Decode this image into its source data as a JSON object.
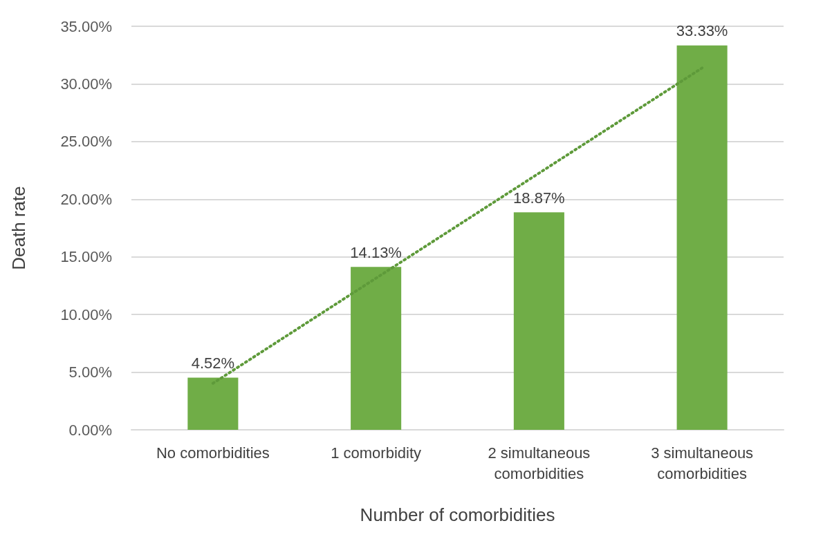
{
  "chart_data": {
    "type": "bar",
    "xlabel": "Number of comorbidities",
    "ylabel": "Death rate",
    "categories": [
      "No comorbidities",
      "1 comorbidity",
      "2 simultaneous comorbidities",
      "3 simultaneous comorbidities"
    ],
    "series": [
      {
        "color": "#70ad47",
        "values": [
          4.52,
          14.13,
          18.87,
          33.33
        ],
        "value_labels": [
          "4.52%",
          "14.13%",
          "18.87%",
          "33.33%"
        ]
      },
      {
        "type": "line",
        "color": "#5e9a3a",
        "line_style": "dotted",
        "marker": "none",
        "x": [
          "No comorbidities",
          "1 comorbidity",
          "2 simultaneous comorbidities",
          "3 simultaneous comorbidities"
        ],
        "values": [
          4.03,
          13.15,
          22.26,
          31.38
        ]
      }
    ],
    "ylim": [
      0,
      35
    ],
    "yticks": [
      {
        "value": 0,
        "label": "0.00%"
      },
      {
        "value": 5,
        "label": "5.00%"
      },
      {
        "value": 10,
        "label": "10.00%"
      },
      {
        "value": 15,
        "label": "15.00%"
      },
      {
        "value": 20,
        "label": "20.00%"
      },
      {
        "value": 25,
        "label": "25.00%"
      },
      {
        "value": 30,
        "label": "30.00%"
      },
      {
        "value": 35,
        "label": "35.00%"
      }
    ],
    "grid": "y"
  }
}
